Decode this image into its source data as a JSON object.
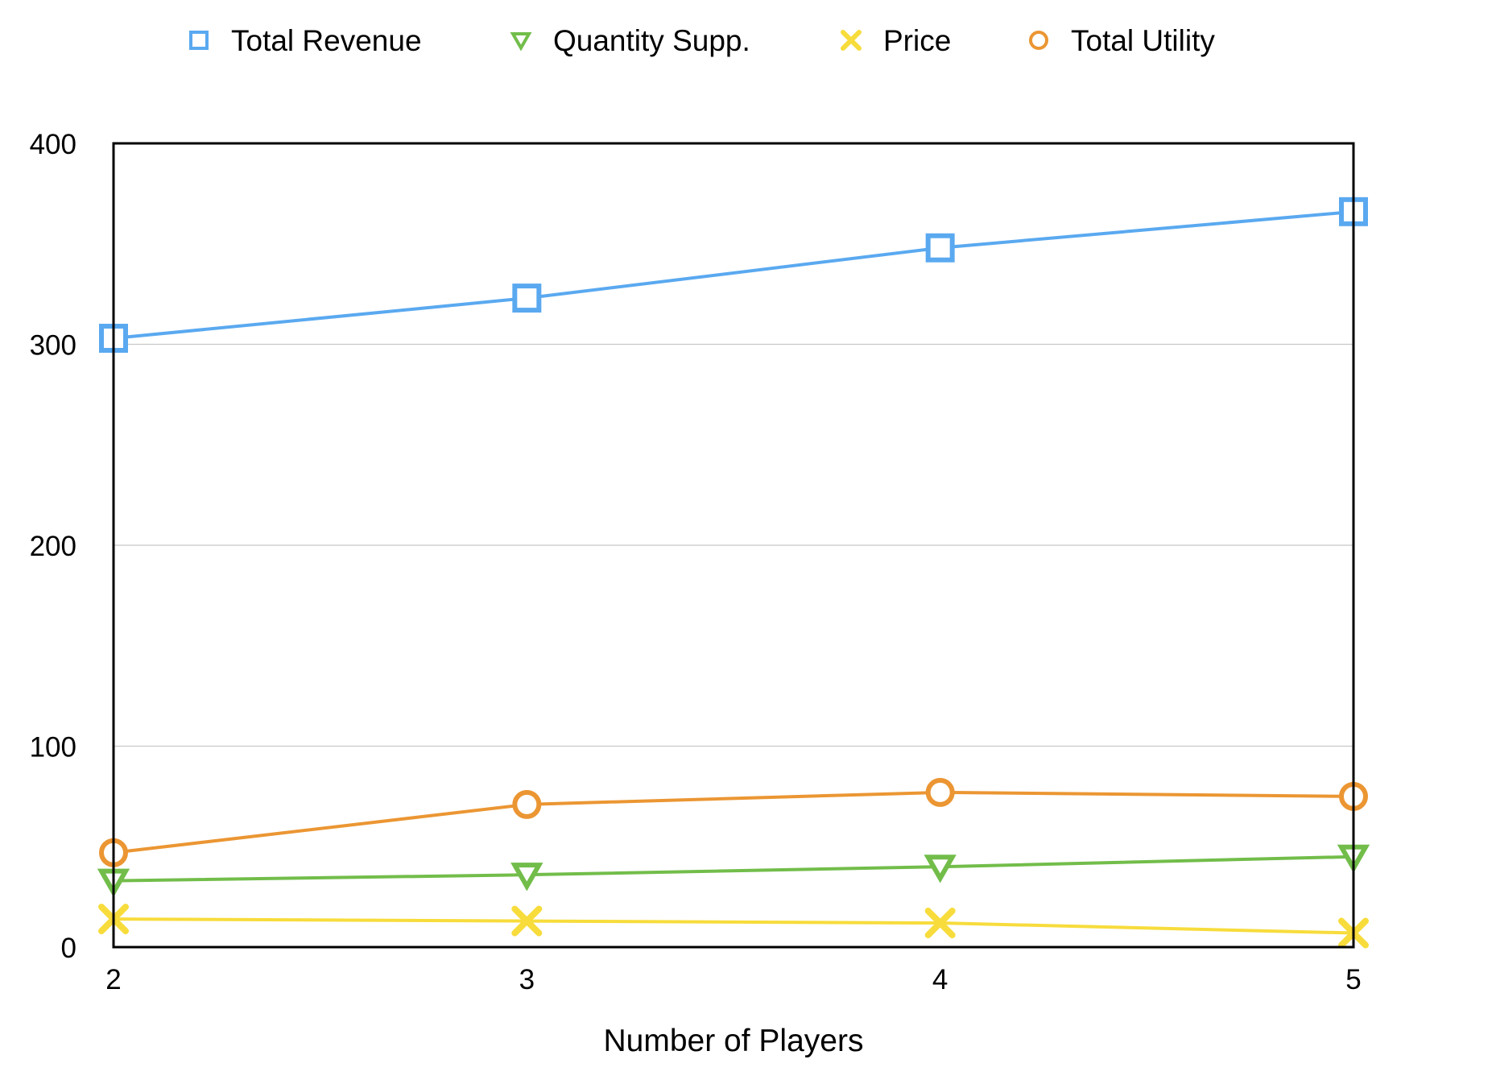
{
  "chart_data": {
    "type": "line",
    "title": "",
    "xlabel": "Number of Players",
    "ylabel": "",
    "categories": [
      "2",
      "3",
      "4",
      "5"
    ],
    "x": [
      2,
      3,
      4,
      5
    ],
    "xlim": [
      2,
      5
    ],
    "ylim": [
      0,
      400
    ],
    "yticks": [
      0,
      100,
      200,
      300,
      400
    ],
    "grid": true,
    "legend_position": "top",
    "series": [
      {
        "name": "Total Revenue",
        "marker": "square",
        "color": "#5aa9f0",
        "values": [
          303,
          323,
          348,
          366
        ]
      },
      {
        "name": "Quantity Supp.",
        "marker": "triangle-down",
        "color": "#72bd4a",
        "values": [
          33,
          36,
          40,
          45
        ]
      },
      {
        "name": "Price",
        "marker": "x",
        "color": "#f7dc3c",
        "values": [
          14,
          13,
          12,
          7
        ]
      },
      {
        "name": "Total Utility",
        "marker": "circle",
        "color": "#eb9633",
        "values": [
          47,
          71,
          77,
          75
        ]
      }
    ]
  }
}
